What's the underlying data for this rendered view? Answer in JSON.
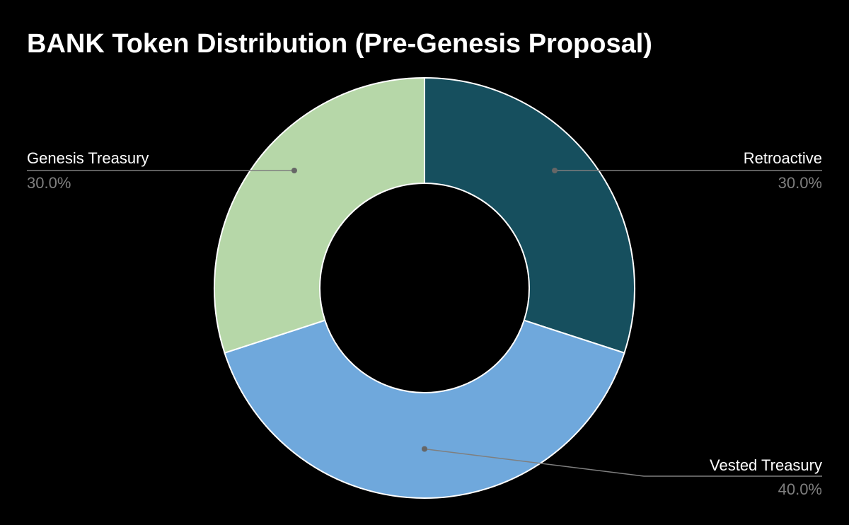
{
  "chart_data": {
    "type": "pie",
    "donut": true,
    "title": "BANK Token Distribution (Pre-Genesis Proposal)",
    "slices": [
      {
        "label": "Retroactive",
        "value": 30.0,
        "percent_label": "30.0%",
        "color": "#164f5e"
      },
      {
        "label": "Vested Treasury",
        "value": 40.0,
        "percent_label": "40.0%",
        "color": "#6fa8dc"
      },
      {
        "label": "Genesis Treasury",
        "value": 30.0,
        "percent_label": "30.0%",
        "color": "#b6d7a8"
      }
    ],
    "background_color": "#000000",
    "slice_border_color": "#ffffff",
    "leader_line_color": "#7f7f7f",
    "label_color": "#ffffff",
    "percent_color": "#7f7f7f"
  }
}
